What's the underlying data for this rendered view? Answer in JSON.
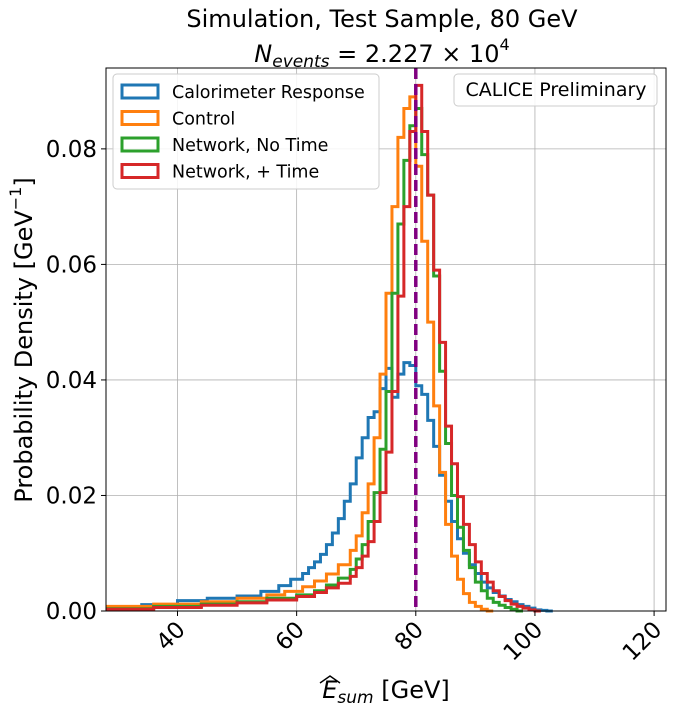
{
  "chart_data": {
    "type": "step-histogram",
    "title": "Simulation, Test Sample, 80 GeV",
    "subtitle": {
      "prefix": "N",
      "sub": "events",
      "eq": " = 2.227 × 10",
      "sup": "4"
    },
    "xlabel": {
      "hat": "E",
      "sub": "sum",
      "rest": " [GeV]"
    },
    "ylabel": {
      "base": "Probability Density [GeV",
      "sup": "−1",
      "close": "]"
    },
    "annotation": "CALICE Preliminary",
    "xlim": [
      28,
      122
    ],
    "ylim": [
      0,
      0.094
    ],
    "xticks": [
      40,
      60,
      80,
      100,
      120
    ],
    "xtick_labels": [
      "40",
      "60",
      "80",
      "100",
      "120"
    ],
    "yticks": [
      0,
      0.02,
      0.04,
      0.06,
      0.08
    ],
    "ytick_labels": [
      "0.00",
      "0.02",
      "0.04",
      "0.06",
      "0.08"
    ],
    "grid": true,
    "legend_position": "top-left",
    "vline": {
      "x": 80,
      "color": "#800080",
      "style": "dashed"
    },
    "bin_width": 1,
    "series": [
      {
        "name": "Calorimeter Response",
        "color": "#1f77b4",
        "bins": [
          [
            28,
            0.0005
          ],
          [
            34,
            0.0011
          ],
          [
            40,
            0.0018
          ],
          [
            45,
            0.0022
          ],
          [
            50,
            0.0026
          ],
          [
            54,
            0.0034
          ],
          [
            57,
            0.0044
          ],
          [
            59,
            0.0055
          ],
          [
            61,
            0.0065
          ],
          [
            62,
            0.0075
          ],
          [
            63,
            0.0085
          ],
          [
            64,
            0.0098
          ],
          [
            65,
            0.0115
          ],
          [
            66,
            0.0135
          ],
          [
            67,
            0.016
          ],
          [
            68,
            0.019
          ],
          [
            69,
            0.022
          ],
          [
            70,
            0.0265
          ],
          [
            71,
            0.03
          ],
          [
            72,
            0.0335
          ],
          [
            73,
            0.0345
          ],
          [
            74,
            0.0385
          ],
          [
            75,
            0.042
          ],
          [
            76,
            0.037
          ],
          [
            77,
            0.041
          ],
          [
            78,
            0.043
          ],
          [
            79,
            0.0425
          ],
          [
            80,
            0.039
          ],
          [
            81,
            0.0375
          ],
          [
            82,
            0.033
          ],
          [
            83,
            0.0285
          ],
          [
            84,
            0.0235
          ],
          [
            85,
            0.019
          ],
          [
            86,
            0.0155
          ],
          [
            87,
            0.0125
          ],
          [
            88,
            0.01
          ],
          [
            89,
            0.008
          ],
          [
            90,
            0.0065
          ],
          [
            91,
            0.005
          ],
          [
            92,
            0.004
          ],
          [
            93,
            0.0032
          ],
          [
            94,
            0.0026
          ],
          [
            95,
            0.002
          ],
          [
            96,
            0.0016
          ],
          [
            97,
            0.0011
          ],
          [
            98,
            0.0008
          ],
          [
            99,
            0.0005
          ],
          [
            100,
            0.0002
          ],
          [
            101,
            0.0001
          ],
          [
            102,
            0
          ]
        ]
      },
      {
        "name": "Control",
        "color": "#ff7f0e",
        "bins": [
          [
            28,
            0.0008
          ],
          [
            36,
            0.0012
          ],
          [
            44,
            0.0016
          ],
          [
            50,
            0.0022
          ],
          [
            55,
            0.0028
          ],
          [
            58,
            0.0034
          ],
          [
            61,
            0.0042
          ],
          [
            63,
            0.0052
          ],
          [
            65,
            0.0064
          ],
          [
            67,
            0.008
          ],
          [
            69,
            0.0105
          ],
          [
            70,
            0.013
          ],
          [
            71,
            0.017
          ],
          [
            72,
            0.022
          ],
          [
            73,
            0.03
          ],
          [
            74,
            0.041
          ],
          [
            75,
            0.055
          ],
          [
            76,
            0.07
          ],
          [
            77,
            0.082
          ],
          [
            78,
            0.087
          ],
          [
            79,
            0.089
          ],
          [
            80,
            0.077
          ],
          [
            81,
            0.064
          ],
          [
            82,
            0.05
          ],
          [
            83,
            0.0355
          ],
          [
            84,
            0.024
          ],
          [
            85,
            0.015
          ],
          [
            86,
            0.0095
          ],
          [
            87,
            0.0055
          ],
          [
            88,
            0.003
          ],
          [
            89,
            0.0015
          ],
          [
            90,
            0.0008
          ],
          [
            91,
            0.0003
          ],
          [
            92,
            0
          ]
        ]
      },
      {
        "name": "Network, No Time",
        "color": "#2ca02c",
        "bins": [
          [
            28,
            0.0004
          ],
          [
            36,
            0.0008
          ],
          [
            44,
            0.0012
          ],
          [
            50,
            0.0016
          ],
          [
            55,
            0.0022
          ],
          [
            60,
            0.0028
          ],
          [
            63,
            0.0035
          ],
          [
            65,
            0.0045
          ],
          [
            67,
            0.0057
          ],
          [
            69,
            0.0072
          ],
          [
            70,
            0.009
          ],
          [
            71,
            0.0115
          ],
          [
            72,
            0.0155
          ],
          [
            73,
            0.0205
          ],
          [
            74,
            0.028
          ],
          [
            75,
            0.038
          ],
          [
            76,
            0.055
          ],
          [
            77,
            0.067
          ],
          [
            78,
            0.078
          ],
          [
            79,
            0.084
          ],
          [
            80,
            0.087
          ],
          [
            81,
            0.079
          ],
          [
            82,
            0.072
          ],
          [
            83,
            0.058
          ],
          [
            84,
            0.0415
          ],
          [
            85,
            0.029
          ],
          [
            86,
            0.02
          ],
          [
            87,
            0.0145
          ],
          [
            88,
            0.0105
          ],
          [
            89,
            0.0075
          ],
          [
            90,
            0.005
          ],
          [
            91,
            0.0035
          ],
          [
            92,
            0.0022
          ],
          [
            93,
            0.0015
          ],
          [
            94,
            0.001
          ],
          [
            95,
            0.0006
          ],
          [
            96,
            0.0003
          ],
          [
            97,
            0
          ]
        ]
      },
      {
        "name": "Network, + Time",
        "color": "#d62728",
        "bins": [
          [
            28,
            0.0003
          ],
          [
            36,
            0.0006
          ],
          [
            44,
            0.001
          ],
          [
            50,
            0.0014
          ],
          [
            55,
            0.0019
          ],
          [
            60,
            0.0025
          ],
          [
            63,
            0.0032
          ],
          [
            65,
            0.004
          ],
          [
            67,
            0.0048
          ],
          [
            69,
            0.006
          ],
          [
            70,
            0.0075
          ],
          [
            71,
            0.0095
          ],
          [
            72,
            0.012
          ],
          [
            73,
            0.0155
          ],
          [
            74,
            0.0205
          ],
          [
            75,
            0.0275
          ],
          [
            76,
            0.038
          ],
          [
            77,
            0.0545
          ],
          [
            78,
            0.07
          ],
          [
            79,
            0.083
          ],
          [
            80,
            0.091
          ],
          [
            81,
            0.083
          ],
          [
            82,
            0.072
          ],
          [
            83,
            0.059
          ],
          [
            84,
            0.0465
          ],
          [
            85,
            0.032
          ],
          [
            86,
            0.0255
          ],
          [
            87,
            0.0198
          ],
          [
            88,
            0.015
          ],
          [
            89,
            0.0115
          ],
          [
            90,
            0.0085
          ],
          [
            91,
            0.0065
          ],
          [
            92,
            0.005
          ],
          [
            93,
            0.0035
          ],
          [
            94,
            0.0025
          ],
          [
            95,
            0.0018
          ],
          [
            96,
            0.0012
          ],
          [
            97,
            0.0008
          ],
          [
            98,
            0.0005
          ],
          [
            99,
            0.0002
          ],
          [
            100,
            0
          ]
        ]
      }
    ]
  }
}
